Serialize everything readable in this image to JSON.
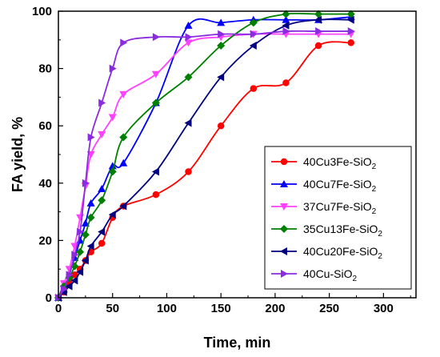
{
  "chart_data": {
    "type": "line",
    "xlabel": "Time, min",
    "ylabel": "FA yield, %",
    "xlim": [
      0,
      330
    ],
    "ylim": [
      0,
      100
    ],
    "xticks": [
      0,
      50,
      100,
      150,
      200,
      250,
      300
    ],
    "yticks": [
      0,
      20,
      40,
      60,
      80,
      100
    ],
    "legend_position": "lower-right",
    "series": [
      {
        "name": "40Cu3Fe-SiO",
        "name_sub": "2",
        "color": "#ff0000",
        "marker": "circle",
        "x": [
          0,
          5,
          10,
          15,
          20,
          25,
          30,
          40,
          50,
          60,
          90,
          120,
          150,
          180,
          210,
          240,
          270
        ],
        "y": [
          0,
          2,
          5,
          8,
          10,
          13,
          16,
          19,
          28,
          32,
          36,
          44,
          60,
          73,
          75,
          88,
          89
        ]
      },
      {
        "name": "40Cu7Fe-SiO",
        "name_sub": "2",
        "color": "#0000ff",
        "marker": "triangle-up",
        "x": [
          0,
          5,
          10,
          15,
          20,
          25,
          30,
          40,
          50,
          60,
          90,
          120,
          150,
          180,
          210,
          240,
          270
        ],
        "y": [
          0,
          3,
          8,
          14,
          20,
          26,
          33,
          38,
          46,
          47,
          68,
          95,
          96,
          97,
          97,
          97,
          98
        ]
      },
      {
        "name": "37Cu7Fe-SiO",
        "name_sub": "2",
        "color": "#ff40ff",
        "marker": "triangle-down",
        "x": [
          0,
          5,
          10,
          15,
          20,
          25,
          30,
          40,
          50,
          60,
          90,
          120,
          150,
          180,
          210,
          240,
          270
        ],
        "y": [
          0,
          5,
          10,
          18,
          28,
          39,
          50,
          57,
          63,
          71,
          78,
          89,
          91,
          92,
          92,
          92,
          92
        ]
      },
      {
        "name": "35Cu13Fe-SiO",
        "name_sub": "2",
        "color": "#008000",
        "marker": "diamond",
        "x": [
          0,
          5,
          10,
          15,
          20,
          25,
          30,
          40,
          50,
          60,
          90,
          120,
          150,
          180,
          210,
          240,
          270
        ],
        "y": [
          0,
          4,
          7,
          11,
          16,
          22,
          28,
          34,
          44,
          56,
          68,
          77,
          88,
          96,
          99,
          99,
          99
        ]
      },
      {
        "name": "40Cu20Fe-SiO",
        "name_sub": "2",
        "color": "#000080",
        "marker": "triangle-left",
        "x": [
          0,
          5,
          10,
          15,
          20,
          25,
          30,
          40,
          50,
          60,
          90,
          120,
          150,
          180,
          210,
          240,
          270
        ],
        "y": [
          0,
          2,
          4,
          6,
          9,
          13,
          18,
          23,
          29,
          32,
          44,
          61,
          77,
          88,
          95,
          97,
          97
        ]
      },
      {
        "name": "40Cu-SiO",
        "name_sub": "2",
        "color": "#8a2be2",
        "marker": "triangle-right",
        "x": [
          0,
          5,
          10,
          15,
          20,
          25,
          30,
          40,
          50,
          60,
          90,
          120,
          150,
          180,
          210,
          240,
          270
        ],
        "y": [
          0,
          3,
          8,
          15,
          23,
          40,
          56,
          68,
          80,
          89,
          91,
          91,
          92,
          92,
          93,
          93,
          93
        ]
      }
    ]
  }
}
